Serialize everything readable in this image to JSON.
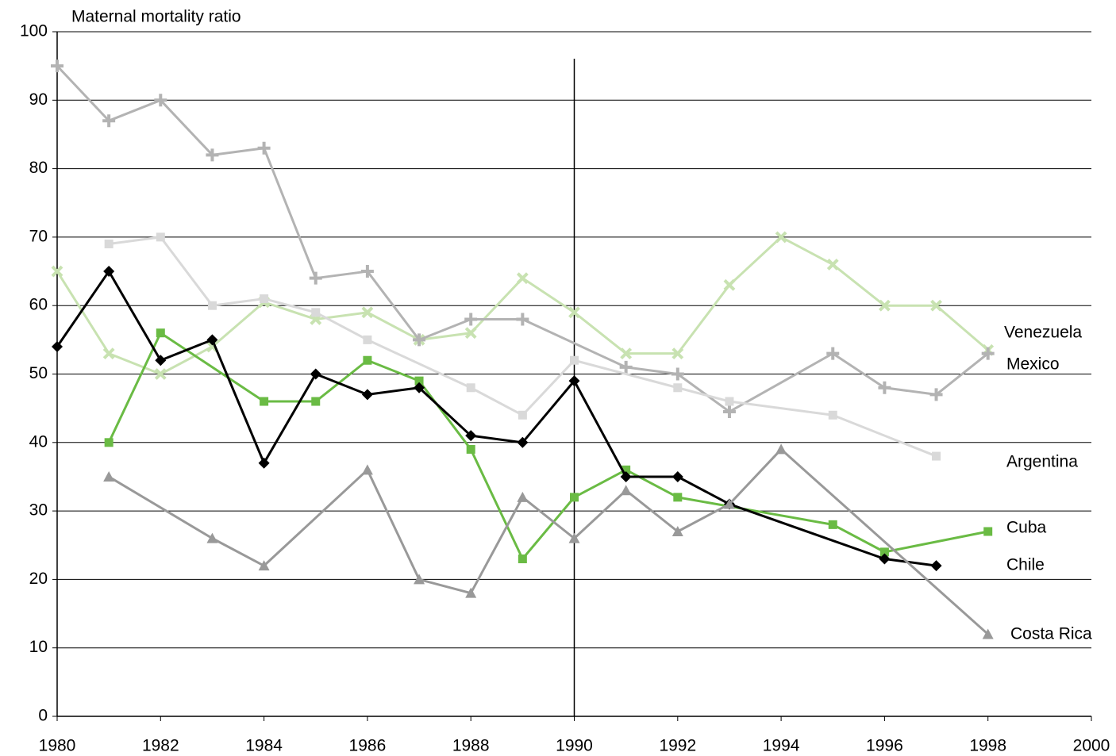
{
  "chart_data": {
    "type": "line",
    "y_label": "Maternal mortality ratio",
    "xlim": [
      1980,
      2000
    ],
    "xticks": [
      1980,
      1982,
      1984,
      1986,
      1988,
      1990,
      1992,
      1994,
      1996,
      1998,
      2000
    ],
    "ylim": [
      0,
      100
    ],
    "yticks": [
      0,
      10,
      20,
      30,
      40,
      50,
      60,
      70,
      80,
      90,
      100
    ],
    "grid": true,
    "vline": 1990,
    "series": [
      {
        "name": "Venezuela",
        "color": "#c8e2b1",
        "marker": "x",
        "x": [
          1980,
          1981,
          1982,
          1983,
          1984,
          1985,
          1986,
          1987,
          1988,
          1989,
          1990,
          1991,
          1992,
          1993,
          1994,
          1995,
          1996,
          1997,
          1998
        ],
        "values": [
          65,
          53,
          50,
          54,
          60.5,
          58,
          59,
          55,
          56,
          64,
          59,
          53,
          53,
          63,
          70,
          66,
          60,
          60,
          53.5
        ]
      },
      {
        "name": "Mexico",
        "color": "#b3b3b3",
        "marker": "plus",
        "x": [
          1980,
          1981,
          1982,
          1983,
          1984,
          1985,
          1986,
          1987,
          1988,
          1989,
          1991,
          1992,
          1993,
          1995,
          1996,
          1997,
          1998
        ],
        "values": [
          95,
          87,
          90,
          82,
          83,
          64,
          65,
          55,
          58,
          58,
          51,
          50,
          44.5,
          53,
          48,
          47,
          53
        ]
      },
      {
        "name": "Argentina",
        "color": "#d9d9d9",
        "marker": "square",
        "x": [
          1981,
          1982,
          1983,
          1984,
          1985,
          1986,
          1988,
          1989,
          1990,
          1992,
          1993,
          1995,
          1997
        ],
        "values": [
          69,
          70,
          60,
          61,
          59,
          55,
          48,
          44,
          52,
          48,
          46,
          44,
          38
        ]
      },
      {
        "name": "Cuba",
        "color": "#6abb44",
        "marker": "square",
        "x": [
          1981,
          1982,
          1984,
          1985,
          1986,
          1987,
          1988,
          1989,
          1990,
          1991,
          1992,
          1995,
          1996,
          1998
        ],
        "values": [
          40,
          56,
          46,
          46,
          52,
          49,
          39,
          23,
          32,
          36,
          32,
          28,
          24,
          27
        ]
      },
      {
        "name": "Chile",
        "color": "#000000",
        "marker": "diamond",
        "x": [
          1980,
          1981,
          1982,
          1983,
          1984,
          1985,
          1986,
          1987,
          1988,
          1989,
          1990,
          1991,
          1992,
          1993,
          1996,
          1997
        ],
        "values": [
          54,
          65,
          52,
          55,
          37,
          50,
          47,
          48,
          41,
          40,
          49,
          35,
          35,
          31,
          23,
          22
        ]
      },
      {
        "name": "Costa Rica",
        "color": "#999999",
        "marker": "triangle",
        "x": [
          1981,
          1983,
          1984,
          1986,
          1987,
          1988,
          1989,
          1990,
          1991,
          1992,
          1993,
          1994,
          1998
        ],
        "values": [
          35,
          26,
          22,
          36,
          20,
          18,
          32,
          26,
          33,
          27,
          31,
          39,
          12
        ]
      }
    ]
  }
}
